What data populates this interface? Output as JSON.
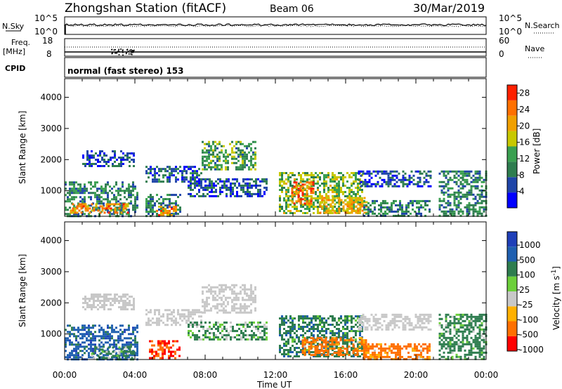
{
  "header": {
    "station": "Zhongshan Station (fitACF)",
    "beam": "Beam 06",
    "date": "30/Mar/2019"
  },
  "labels": {
    "nsky": "N.Sky",
    "nsearch": "N.Search",
    "freq": "Freq.",
    "mhz": "[MHz]",
    "nave": "Nave",
    "cpid": "CPID",
    "cpid_value": "normal (fast stereo) 153",
    "xlabel": "Time UT"
  },
  "ticks": {
    "noise_left": [
      "10^5",
      "10^0"
    ],
    "noise_right": [
      "10^5",
      "10^0"
    ],
    "freq_left": [
      "18",
      "8"
    ],
    "nave_right": [
      "60",
      "0"
    ],
    "y_range": [
      "4000",
      "3000",
      "2000",
      "1000"
    ],
    "x_time": [
      "00:00",
      "04:00",
      "08:00",
      "12:00",
      "16:00",
      "20:00",
      "00:00"
    ]
  },
  "colors": {
    "power": [
      "#0000ff",
      "#1f45a8",
      "#2e7d4f",
      "#3aa050",
      "#c8c800",
      "#f0a000",
      "#ff7000",
      "#ff2000"
    ],
    "velocity": [
      "#ff0000",
      "#ff7000",
      "#ffb000",
      "#c8c8c8",
      "#6ccf3a",
      "#2e7d4f",
      "#1f5fb0",
      "#1f3fb8"
    ],
    "ground_scatter": "#c0c0c0"
  },
  "chart_data": [
    {
      "type": "heatmap",
      "title": "Power",
      "ylabel": "Slant Range [km]",
      "xlabel": "",
      "x_range_hours": [
        0,
        24
      ],
      "y_range_km": [
        180,
        4600
      ],
      "colorbar": {
        "label": "Power [dB]",
        "ticks": [
          "4",
          "8",
          "12",
          "16",
          "20",
          "24",
          "28"
        ],
        "range": [
          0,
          30
        ]
      },
      "regions": [
        {
          "t0": 0.0,
          "t1": 4.1,
          "r0": 200,
          "r1": 1300,
          "level": 10
        },
        {
          "t0": 0.3,
          "t1": 3.6,
          "r0": 280,
          "r1": 600,
          "level": 22
        },
        {
          "t0": 4.6,
          "t1": 6.6,
          "r0": 200,
          "r1": 900,
          "level": 9
        },
        {
          "t0": 5.2,
          "t1": 6.3,
          "r0": 240,
          "r1": 520,
          "level": 22
        },
        {
          "t0": 1.0,
          "t1": 4.0,
          "r0": 1800,
          "r1": 2300,
          "level": 6
        },
        {
          "t0": 4.6,
          "t1": 7.8,
          "r0": 1300,
          "r1": 1800,
          "level": 7
        },
        {
          "t0": 7.8,
          "t1": 10.9,
          "r0": 1700,
          "r1": 2600,
          "level": 12
        },
        {
          "t0": 7.0,
          "t1": 11.5,
          "r0": 800,
          "r1": 1400,
          "level": 6
        },
        {
          "t0": 12.2,
          "t1": 17.0,
          "r0": 250,
          "r1": 1600,
          "level": 14
        },
        {
          "t0": 12.9,
          "t1": 14.2,
          "r0": 600,
          "r1": 1300,
          "level": 24
        },
        {
          "t0": 14.5,
          "t1": 17.2,
          "r0": 300,
          "r1": 800,
          "level": 20
        },
        {
          "t0": 16.7,
          "t1": 20.8,
          "r0": 1150,
          "r1": 1650,
          "level": 6
        },
        {
          "t0": 17.0,
          "t1": 20.8,
          "r0": 200,
          "r1": 700,
          "level": 10
        },
        {
          "t0": 21.3,
          "t1": 24.0,
          "r0": 200,
          "r1": 1650,
          "level": 10
        }
      ]
    },
    {
      "type": "heatmap",
      "title": "Velocity",
      "ylabel": "Slant Range [km]",
      "xlabel": "Time UT",
      "x_range_hours": [
        0,
        24
      ],
      "y_range_km": [
        180,
        4600
      ],
      "colorbar": {
        "label": "Velocity [m s^-1]",
        "ticks": [
          "1000",
          "500",
          "100",
          "25",
          "-25",
          "-100",
          "-500",
          "-1000"
        ]
      },
      "regions": [
        {
          "t0": 0.0,
          "t1": 4.1,
          "r0": 200,
          "r1": 1300,
          "level": 500
        },
        {
          "t0": 1.5,
          "t1": 4.0,
          "r0": 250,
          "r1": 600,
          "level": 100
        },
        {
          "t0": 4.8,
          "t1": 6.6,
          "r0": 200,
          "r1": 800,
          "level": -300
        },
        {
          "t0": 1.0,
          "t1": 4.0,
          "r0": 1800,
          "r1": 2300,
          "level": 0
        },
        {
          "t0": 4.6,
          "t1": 7.8,
          "r0": 1300,
          "r1": 1800,
          "level": 0
        },
        {
          "t0": 7.8,
          "t1": 10.9,
          "r0": 1700,
          "r1": 2600,
          "level": 0
        },
        {
          "t0": 7.0,
          "t1": 11.5,
          "r0": 800,
          "r1": 1400,
          "level": 80
        },
        {
          "t0": 12.2,
          "t1": 17.0,
          "r0": 250,
          "r1": 1600,
          "level": 200
        },
        {
          "t0": 13.5,
          "t1": 17.2,
          "r0": 300,
          "r1": 900,
          "level": -150
        },
        {
          "t0": 16.7,
          "t1": 20.8,
          "r0": 1150,
          "r1": 1650,
          "level": 0
        },
        {
          "t0": 17.0,
          "t1": 20.8,
          "r0": 200,
          "r1": 700,
          "level": -150
        },
        {
          "t0": 21.3,
          "t1": 24.0,
          "r0": 200,
          "r1": 1650,
          "level": 150
        }
      ]
    }
  ]
}
